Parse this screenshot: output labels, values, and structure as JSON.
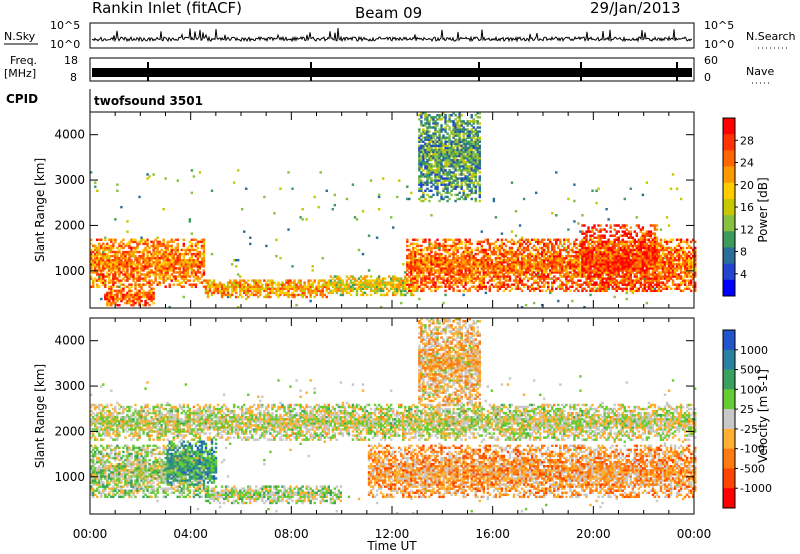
{
  "header": {
    "station": "Rankin Inlet (fitACF)",
    "beam": "Beam 09",
    "date": "29/Jan/2013"
  },
  "top_panels": {
    "nsky_label": "N.Sky",
    "nsearch_label": "N.Search",
    "nsky_ticks": [
      "10^5",
      "10^0"
    ],
    "nsearch_ticks": [
      "10^5",
      "10^0"
    ],
    "freq_label": "Freq.",
    "freq_unit": "[MHz]",
    "freq_ticks": [
      "18",
      "8"
    ],
    "nave_label": "Nave",
    "nave_ticks": [
      "60",
      "0"
    ],
    "cpid_label": "CPID",
    "cpid_value": "twofsound 3501"
  },
  "axes": {
    "ylabel": "Slant Range [km]",
    "yticks": [
      "4000",
      "3000",
      "2000",
      "1000"
    ],
    "xticks": [
      "00:00",
      "04:00",
      "08:00",
      "12:00",
      "16:00",
      "20:00",
      "00:00"
    ],
    "xlabel": "Time UT"
  },
  "power_scale": {
    "label": "Power [dB]",
    "ticks": [
      "28",
      "24",
      "20",
      "16",
      "12",
      "8",
      "4"
    ],
    "colors": [
      "#ff0000",
      "#ff3300",
      "#ff6600",
      "#ff9900",
      "#ffcc00",
      "#c8c800",
      "#88c040",
      "#3c9c5c",
      "#2a6e9a",
      "#2244d0",
      "#0000ff"
    ]
  },
  "velocity_scale": {
    "label": "Velocity [m s-1]",
    "ticks": [
      "1000",
      "500",
      "100",
      "25",
      "-25",
      "-100",
      "-500",
      "-1000"
    ],
    "colors": [
      "#2255cc",
      "#2a80a0",
      "#3aa060",
      "#66cc33",
      "#c8c8c8",
      "#ffb030",
      "#ff7a10",
      "#ff4400",
      "#ff0000"
    ]
  },
  "chart_data": [
    {
      "type": "heatmap",
      "title": "Power [dB]",
      "xlabel": "Time UT",
      "ylabel": "Slant Range [km]",
      "xlim": [
        "00:00",
        "24:00"
      ],
      "ylim": [
        180,
        4500
      ],
      "clim": [
        0,
        30
      ],
      "regions": [
        {
          "t0": 0.0,
          "t1": 4.5,
          "r0": 600,
          "r1": 1700,
          "value": 22
        },
        {
          "t0": 0.5,
          "t1": 2.5,
          "r0": 200,
          "r1": 600,
          "value": 24
        },
        {
          "t0": 4.5,
          "t1": 9.5,
          "r0": 400,
          "r1": 800,
          "value": 20
        },
        {
          "t0": 9.5,
          "t1": 13.0,
          "r0": 450,
          "r1": 900,
          "value": 16
        },
        {
          "t0": 12.5,
          "t1": 24.0,
          "r0": 500,
          "r1": 1700,
          "value": 23
        },
        {
          "t0": 19.5,
          "t1": 22.5,
          "r0": 500,
          "r1": 2000,
          "value": 26
        },
        {
          "t0": 13.0,
          "t1": 15.5,
          "r0": 2500,
          "r1": 4500,
          "value": 10
        }
      ]
    },
    {
      "type": "heatmap",
      "title": "Velocity [m s-1]",
      "xlabel": "Time UT",
      "ylabel": "Slant Range [km]",
      "xlim": [
        "00:00",
        "24:00"
      ],
      "ylim": [
        180,
        4500
      ],
      "clim": [
        -1000,
        1000
      ],
      "regions": [
        {
          "t0": 0.0,
          "t1": 4.5,
          "r0": 500,
          "r1": 1700,
          "value": 100
        },
        {
          "t0": 3.0,
          "t1": 5.0,
          "r0": 800,
          "r1": 1800,
          "value": 500
        },
        {
          "t0": 4.5,
          "t1": 10.0,
          "r0": 400,
          "r1": 800,
          "value": 100
        },
        {
          "t0": 11.0,
          "t1": 24.0,
          "r0": 500,
          "r1": 1700,
          "value": -300
        },
        {
          "t0": 13.0,
          "t1": 15.5,
          "r0": 2500,
          "r1": 4500,
          "value": -200
        },
        {
          "t0": 0.0,
          "t1": 24.0,
          "r0": 1800,
          "r1": 2600,
          "value": 0
        }
      ]
    }
  ]
}
